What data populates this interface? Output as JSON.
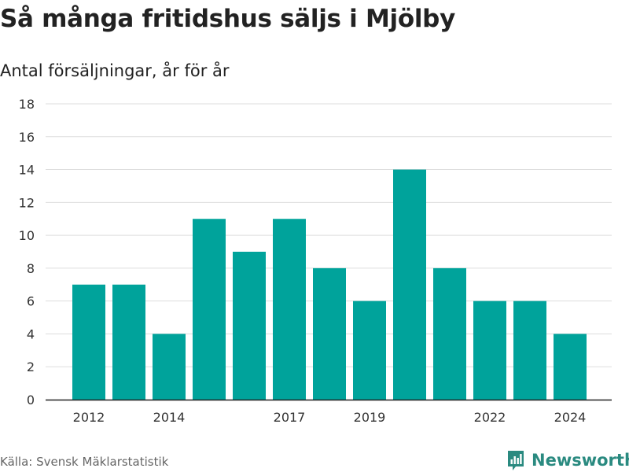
{
  "title": "Så många fritidshus säljs i Mjölby",
  "subtitle": "Antal försäljningar, år för år",
  "source": "Källa: Svensk Mäklarstatistik",
  "brand": {
    "name": "Newsworthy",
    "icon": "newsworthy-logo-icon"
  },
  "colors": {
    "bar": "#00a39b",
    "grid": "#dddddd",
    "axis": "#222222",
    "brand": "#2a8a80"
  },
  "chart_data": {
    "type": "bar",
    "categories": [
      "2012",
      "2013",
      "2014",
      "2015",
      "2016",
      "2017",
      "2018",
      "2019",
      "2020",
      "2021",
      "2022",
      "2023",
      "2024"
    ],
    "x_tick_labels": [
      "2012",
      "2014",
      "2017",
      "2019",
      "2022",
      "2024"
    ],
    "values": [
      7,
      7,
      4,
      11,
      9,
      11,
      8,
      6,
      14,
      8,
      6,
      6,
      4
    ],
    "y_ticks": [
      0,
      2,
      4,
      6,
      8,
      10,
      12,
      14,
      16,
      18
    ],
    "ylim": [
      0,
      18
    ],
    "grid": true,
    "legend": false,
    "xlabel": "",
    "ylabel": ""
  }
}
